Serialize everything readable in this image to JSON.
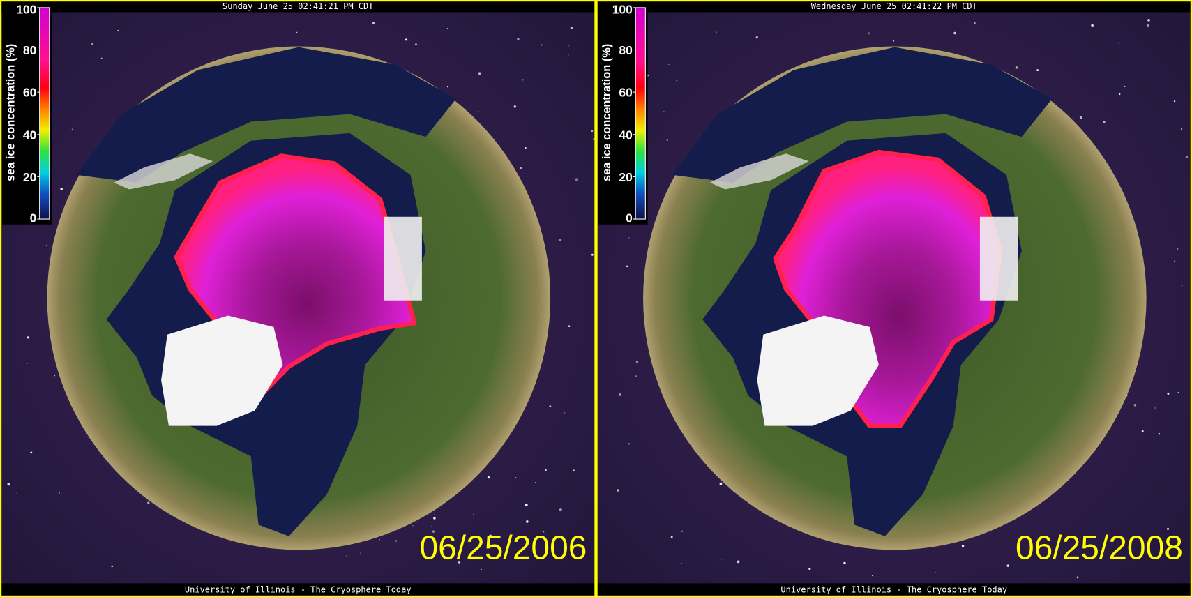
{
  "panels": [
    {
      "header": "Sunday June 25 02:41:21 PM CDT",
      "colorbar": {
        "label": "sea ice concentration (%)",
        "ticks": [
          0,
          20,
          40,
          60,
          80,
          100
        ]
      },
      "date": "06/25/2006",
      "footer": "University of Illinois - The Cryosphere Today"
    },
    {
      "header": "Wednesday June 25 02:41:22 PM CDT",
      "colorbar": {
        "label": "sea ice concentration (%)",
        "ticks": [
          0,
          20,
          40,
          60,
          80,
          100
        ]
      },
      "date": "06/25/2008",
      "footer": "University of Illinois - The Cryosphere Today"
    }
  ]
}
